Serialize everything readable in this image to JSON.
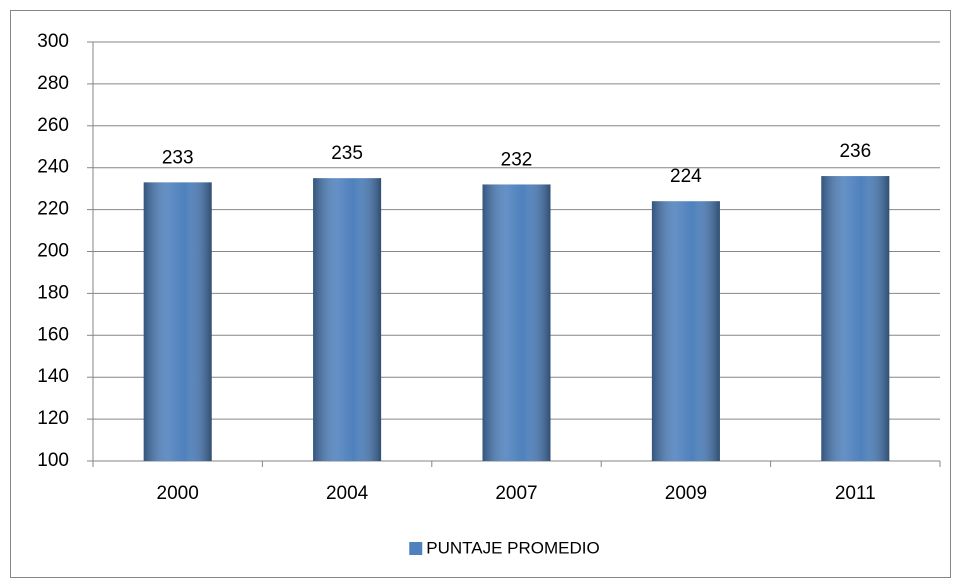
{
  "chart_data": {
    "type": "bar",
    "categories": [
      "2000",
      "2004",
      "2007",
      "2009",
      "2011"
    ],
    "series": [
      {
        "name": "PUNTAJE PROMEDIO",
        "color": "#4f81bd",
        "values": [
          233,
          235,
          232,
          224,
          236
        ]
      }
    ],
    "ylim": [
      100,
      300
    ],
    "yticks": [
      100,
      120,
      140,
      160,
      180,
      200,
      220,
      240,
      260,
      280,
      300
    ],
    "grid": true,
    "legend": "bottom"
  }
}
